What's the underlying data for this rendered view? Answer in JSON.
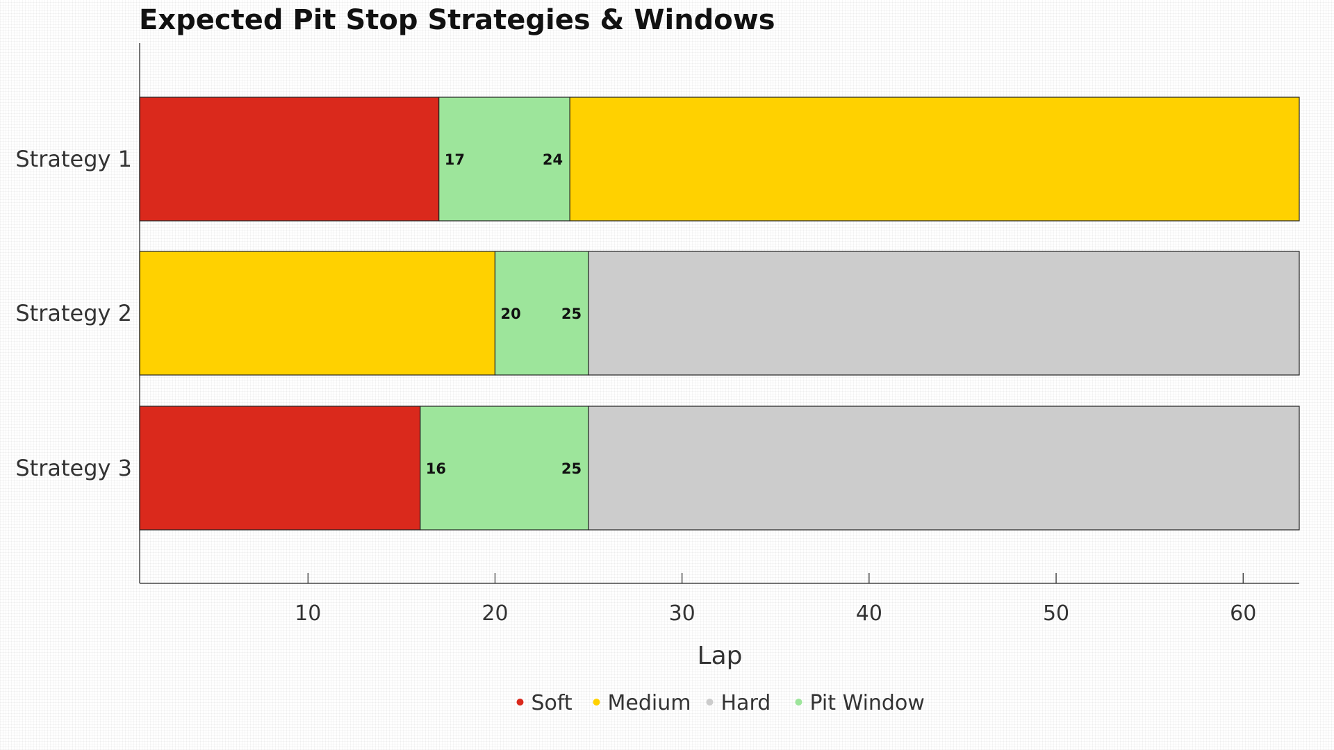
{
  "chart_data": {
    "type": "bar",
    "orientation": "horizontal",
    "stacked": true,
    "title": "Expected Pit Stop Strategies & Windows",
    "xlabel": "Lap",
    "ylabel": "",
    "xlim": [
      1,
      63
    ],
    "xticks": [
      10,
      20,
      30,
      40,
      50,
      60
    ],
    "grid": false,
    "legend_position": "bottom",
    "categories": [
      "Strategy 1",
      "Strategy 2",
      "Strategy 3"
    ],
    "legend": [
      {
        "name": "Soft",
        "color": "#da291c"
      },
      {
        "name": "Medium",
        "color": "#ffd100"
      },
      {
        "name": "Hard",
        "color": "#cccccc"
      },
      {
        "name": "Pit Window",
        "color": "#9de59b"
      }
    ],
    "strategies": [
      {
        "name": "Strategy 1",
        "segments": [
          {
            "compound": "Soft",
            "start": 1,
            "end": 17
          },
          {
            "compound": "Pit Window",
            "start": 17,
            "end": 24
          },
          {
            "compound": "Medium",
            "start": 24,
            "end": 63
          }
        ],
        "window_labels": [
          "17",
          "24"
        ]
      },
      {
        "name": "Strategy 2",
        "segments": [
          {
            "compound": "Medium",
            "start": 1,
            "end": 20
          },
          {
            "compound": "Pit Window",
            "start": 20,
            "end": 25
          },
          {
            "compound": "Hard",
            "start": 25,
            "end": 63
          }
        ],
        "window_labels": [
          "20",
          "25"
        ]
      },
      {
        "name": "Strategy 3",
        "segments": [
          {
            "compound": "Soft",
            "start": 1,
            "end": 16
          },
          {
            "compound": "Pit Window",
            "start": 16,
            "end": 25
          },
          {
            "compound": "Hard",
            "start": 25,
            "end": 63
          }
        ],
        "window_labels": [
          "16",
          "25"
        ]
      }
    ]
  }
}
